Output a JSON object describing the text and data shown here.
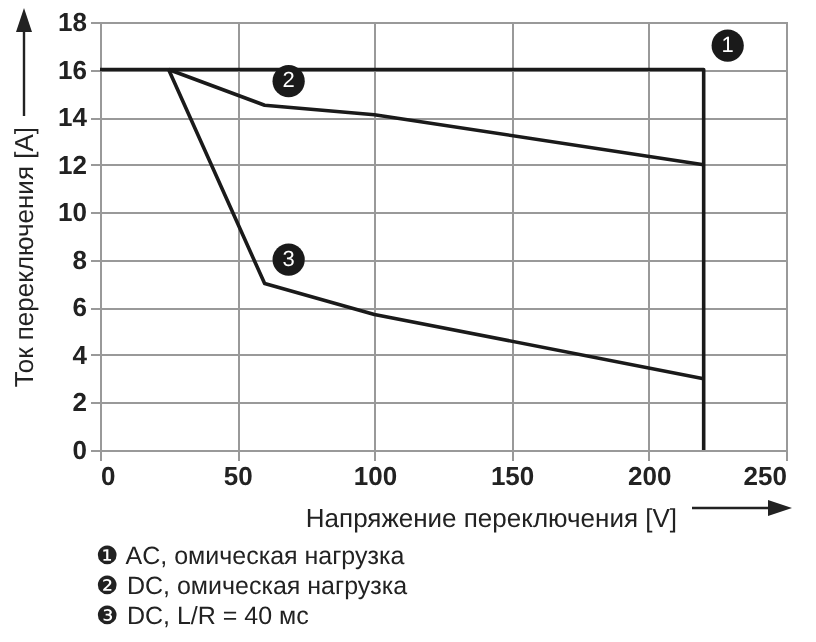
{
  "chart_data": {
    "type": "line",
    "xlabel": "Напряжение переключения [V]",
    "ylabel": "Ток переключения [A]",
    "xlim": [
      0,
      250
    ],
    "xticks": [
      0,
      50,
      100,
      150,
      200,
      250
    ],
    "ylim": [
      0,
      18
    ],
    "yticks": [
      0,
      2,
      4,
      6,
      8,
      10,
      12,
      14,
      16,
      18
    ],
    "grid": true,
    "line_style": "solid",
    "series": [
      {
        "name": "1",
        "color": "#1a1a1a",
        "x": [
          0,
          220,
          220
        ],
        "values": [
          16,
          16,
          0
        ]
      },
      {
        "name": "2",
        "color": "#1a1a1a",
        "x": [
          25,
          60,
          100,
          220
        ],
        "values": [
          16,
          14.5,
          14.1,
          12
        ]
      },
      {
        "name": "3",
        "color": "#1a1a1a",
        "x": [
          25,
          60,
          100,
          220
        ],
        "values": [
          16,
          7,
          5.7,
          3
        ]
      }
    ],
    "annotations": [
      "❶ AC, омическая нагрузка",
      "❷ DC, омическая нагрузка",
      "❸ DC, L/R = 40 мс"
    ]
  }
}
